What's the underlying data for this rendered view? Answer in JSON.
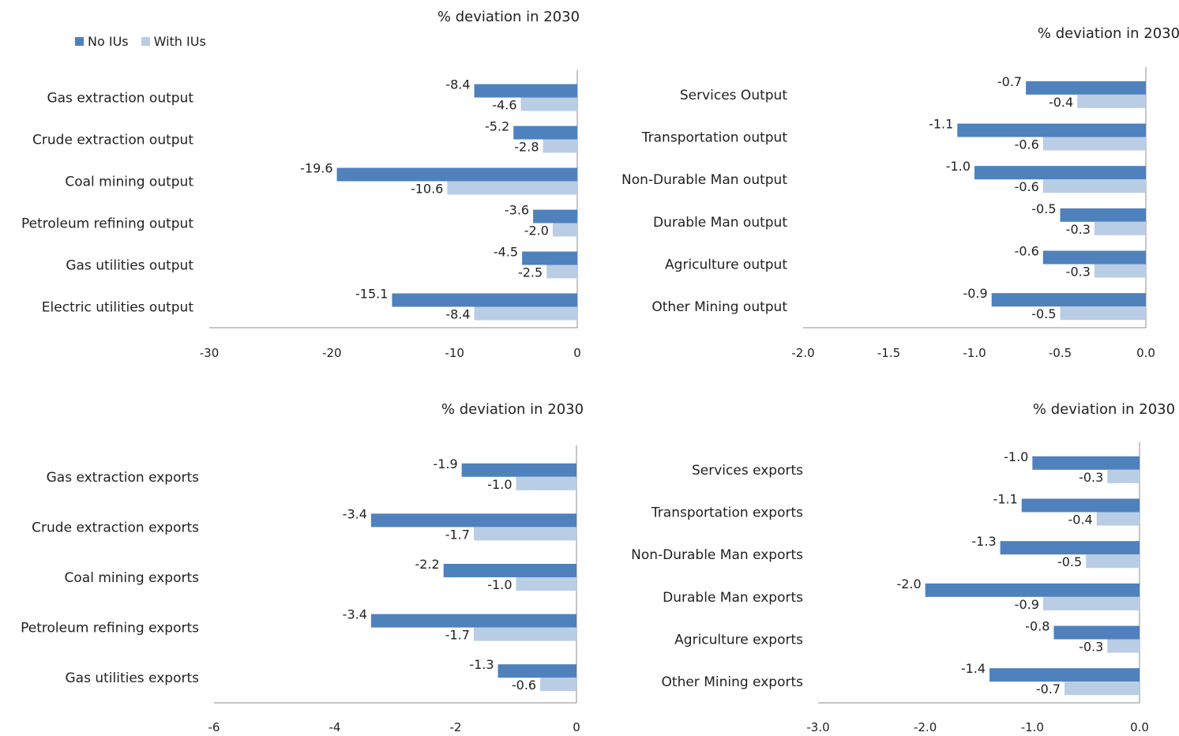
{
  "legend": {
    "no_ius_label": "No IUs",
    "with_ius_label": "With IUs",
    "no_ius_color": "#4F81BD",
    "with_ius_color": "#B9CDE5"
  },
  "chart_data": [
    {
      "type": "bar",
      "orientation": "horizontal",
      "title": "% deviation in 2030",
      "categories": [
        "Gas extraction output",
        "Crude extraction output",
        "Coal mining output",
        "Petroleum refining output",
        "Gas utilities output",
        "Electric utilities output"
      ],
      "series": [
        {
          "name": "No IUs",
          "values": [
            -8.4,
            -5.2,
            -19.6,
            -3.6,
            -4.5,
            -15.1
          ]
        },
        {
          "name": "With IUs",
          "values": [
            -4.6,
            -2.8,
            -10.6,
            -2.0,
            -2.5,
            -8.4
          ]
        }
      ],
      "xlim": [
        -30,
        0
      ],
      "xticks": [
        -30,
        -20,
        -10,
        0
      ],
      "decimals": 0
    },
    {
      "type": "bar",
      "orientation": "horizontal",
      "title": "% deviation in 2030",
      "categories": [
        "Services Output",
        "Transportation output",
        "Non-Durable Man output",
        "Durable Man output",
        "Agriculture output",
        "Other Mining output"
      ],
      "series": [
        {
          "name": "No IUs",
          "values": [
            -0.7,
            -1.1,
            -1.0,
            -0.5,
            -0.6,
            -0.9
          ]
        },
        {
          "name": "With IUs",
          "values": [
            -0.4,
            -0.6,
            -0.6,
            -0.3,
            -0.3,
            -0.5
          ]
        }
      ],
      "xlim": [
        -2.0,
        0.0
      ],
      "xticks": [
        -2.0,
        -1.5,
        -1.0,
        -0.5,
        0.0
      ],
      "decimals": 1
    },
    {
      "type": "bar",
      "orientation": "horizontal",
      "title": "% deviation in 2030",
      "categories": [
        "Gas extraction exports",
        "Crude extraction exports",
        "Coal mining exports",
        "Petroleum refining exports",
        "Gas utilities exports"
      ],
      "series": [
        {
          "name": "No IUs",
          "values": [
            -1.9,
            -3.4,
            -2.2,
            -3.4,
            -1.3
          ]
        },
        {
          "name": "With IUs",
          "values": [
            -1.0,
            -1.7,
            -1.0,
            -1.7,
            -0.6
          ]
        }
      ],
      "xlim": [
        -6,
        0
      ],
      "xticks": [
        -6,
        -4,
        -2,
        0
      ],
      "decimals": 0
    },
    {
      "type": "bar",
      "orientation": "horizontal",
      "title": "% deviation in 2030",
      "categories": [
        "Services exports",
        "Transportation exports",
        "Non-Durable Man exports",
        "Durable Man exports",
        "Agriculture exports",
        "Other Mining exports"
      ],
      "series": [
        {
          "name": "No IUs",
          "values": [
            -1.0,
            -1.1,
            -1.3,
            -2.0,
            -0.8,
            -1.4
          ]
        },
        {
          "name": "With IUs",
          "values": [
            -0.3,
            -0.4,
            -0.5,
            -0.9,
            -0.3,
            -0.7
          ]
        }
      ],
      "xlim": [
        -3.0,
        0.0
      ],
      "xticks": [
        -3.0,
        -2.0,
        -1.0,
        0.0
      ],
      "decimals": 1
    }
  ]
}
